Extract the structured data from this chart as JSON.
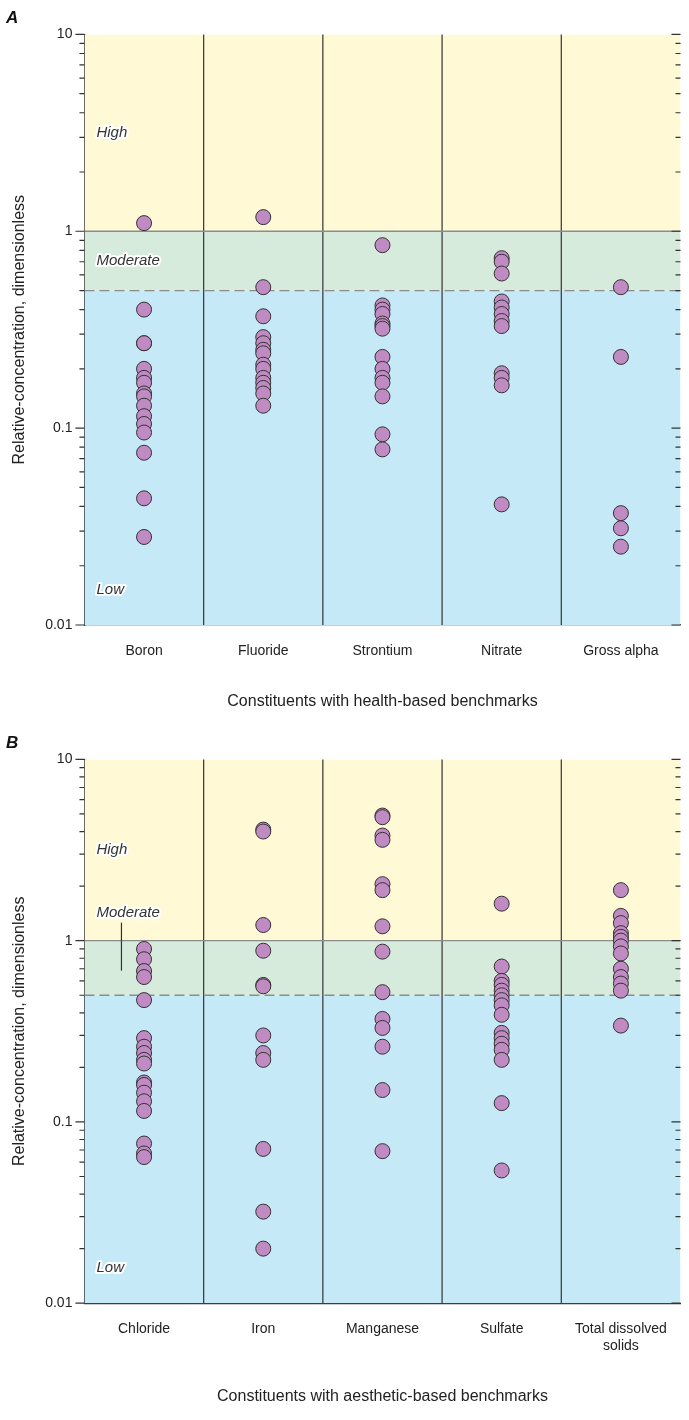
{
  "chart_data": [
    {
      "type": "scatter",
      "title": "A",
      "xlabel": "Constituents with health-based benchmarks",
      "ylabel": "Relative-concentration, dimensionless",
      "log": "y",
      "grid": "x",
      "legend": false,
      "marker": "circle",
      "categories": [
        "Boron",
        "Fluoride",
        "Strontium",
        "Nitrate",
        "Gross alpha"
      ],
      "ylim": [
        0.01,
        10
      ],
      "yticks": [
        0.01,
        {
          "value": 0.02,
          "label": null
        },
        {
          "value": 0.03,
          "label": null
        },
        {
          "value": 0.04,
          "label": null
        },
        {
          "value": 0.05,
          "label": null
        },
        {
          "value": 0.06,
          "label": null
        },
        {
          "value": 0.07,
          "label": null
        },
        {
          "value": 0.08,
          "label": null
        },
        {
          "value": 0.09,
          "label": null
        },
        0.1,
        {
          "value": 0.2,
          "label": null
        },
        {
          "value": 0.3,
          "label": null
        },
        {
          "value": 0.4,
          "label": null
        },
        {
          "value": 0.5,
          "label": null
        },
        {
          "value": 0.6,
          "label": null
        },
        {
          "value": 0.7,
          "label": null
        },
        {
          "value": 0.8,
          "label": null
        },
        {
          "value": 0.9,
          "label": null
        },
        1,
        {
          "value": 2,
          "label": null
        },
        {
          "value": 3,
          "label": null
        },
        {
          "value": 4,
          "label": null
        },
        {
          "value": 5,
          "label": null
        },
        {
          "value": 6,
          "label": null
        },
        {
          "value": 7,
          "label": null
        },
        {
          "value": 8,
          "label": null
        },
        {
          "value": 9,
          "label": null
        },
        10
      ],
      "bands": [
        {
          "axis": "y",
          "from": 1,
          "to": 10,
          "label": "High",
          "color": "#fff9d6"
        },
        {
          "axis": "y",
          "from": 0.5,
          "to": 1,
          "label": "Moderate",
          "color": "#d7ebdc"
        },
        {
          "axis": "y",
          "from": 0.01,
          "to": 0.5,
          "label": "Low",
          "color": "#c5e9f7"
        }
      ],
      "ref_lines": [
        {
          "axis": "y",
          "value": 1,
          "color": "#8c8c8c",
          "line_style": "solid"
        },
        {
          "axis": "y",
          "value": 0.5,
          "color": "#8c8c8c",
          "line_style": "dashed"
        }
      ],
      "series": [
        {
          "color": "#c08bc3",
          "x": [
            "Boron",
            "Boron",
            "Boron",
            "Boron",
            "Boron",
            "Boron",
            "Boron",
            "Boron",
            "Boron",
            "Boron",
            "Boron",
            "Boron",
            "Boron",
            "Boron",
            "Boron",
            "Boron",
            "Fluoride",
            "Fluoride",
            "Fluoride",
            "Fluoride",
            "Fluoride",
            "Fluoride",
            "Fluoride",
            "Fluoride",
            "Fluoride",
            "Fluoride",
            "Fluoride",
            "Fluoride",
            "Fluoride",
            "Fluoride",
            "Strontium",
            "Strontium",
            "Strontium",
            "Strontium",
            "Strontium",
            "Strontium",
            "Strontium",
            "Strontium",
            "Strontium",
            "Strontium",
            "Strontium",
            "Strontium",
            "Strontium",
            "Strontium",
            "Nitrate",
            "Nitrate",
            "Nitrate",
            "Nitrate",
            "Nitrate",
            "Nitrate",
            "Nitrate",
            "Nitrate",
            "Nitrate",
            "Nitrate",
            "Nitrate",
            "Nitrate",
            "Gross alpha",
            "Gross alpha",
            "Gross alpha",
            "Gross alpha",
            "Gross alpha"
          ],
          "values": [
            1.1,
            0.4,
            0.27,
            0.27,
            0.2,
            0.18,
            0.17,
            0.15,
            0.145,
            0.13,
            0.115,
            0.105,
            0.095,
            0.075,
            0.044,
            0.028,
            1.18,
            0.52,
            0.37,
            0.29,
            0.27,
            0.25,
            0.24,
            0.21,
            0.2,
            0.18,
            0.17,
            0.16,
            0.15,
            0.13,
            0.85,
            0.42,
            0.4,
            0.38,
            0.34,
            0.33,
            0.32,
            0.23,
            0.2,
            0.18,
            0.17,
            0.145,
            0.093,
            0.078,
            0.73,
            0.7,
            0.61,
            0.44,
            0.41,
            0.38,
            0.35,
            0.33,
            0.19,
            0.18,
            0.165,
            0.041,
            0.52,
            0.23,
            0.037,
            0.031,
            0.025
          ]
        }
      ]
    },
    {
      "type": "scatter",
      "title": "B",
      "xlabel": "Constituents with aesthetic-based benchmarks",
      "ylabel": "Relative-concentration, dimensionless",
      "log": "y",
      "grid": "x",
      "legend": false,
      "marker": "circle",
      "categories": [
        "Chloride",
        "Iron",
        "Manganese",
        "Sulfate",
        "Total dissolved solids"
      ],
      "ylim": [
        0.01,
        10
      ],
      "yticks": [
        0.01,
        {
          "value": 0.02,
          "label": null
        },
        {
          "value": 0.03,
          "label": null
        },
        {
          "value": 0.04,
          "label": null
        },
        {
          "value": 0.05,
          "label": null
        },
        {
          "value": 0.06,
          "label": null
        },
        {
          "value": 0.07,
          "label": null
        },
        {
          "value": 0.08,
          "label": null
        },
        {
          "value": 0.09,
          "label": null
        },
        0.1,
        {
          "value": 0.2,
          "label": null
        },
        {
          "value": 0.3,
          "label": null
        },
        {
          "value": 0.4,
          "label": null
        },
        {
          "value": 0.5,
          "label": null
        },
        {
          "value": 0.6,
          "label": null
        },
        {
          "value": 0.7,
          "label": null
        },
        {
          "value": 0.8,
          "label": null
        },
        {
          "value": 0.9,
          "label": null
        },
        1,
        {
          "value": 2,
          "label": null
        },
        {
          "value": 3,
          "label": null
        },
        {
          "value": 4,
          "label": null
        },
        {
          "value": 5,
          "label": null
        },
        {
          "value": 6,
          "label": null
        },
        {
          "value": 7,
          "label": null
        },
        {
          "value": 8,
          "label": null
        },
        {
          "value": 9,
          "label": null
        },
        10
      ],
      "bands": [
        {
          "axis": "y",
          "from": 1,
          "to": 10,
          "label": "High",
          "color": "#fff9d6"
        },
        {
          "axis": "y",
          "from": 0.5,
          "to": 1,
          "label": "Moderate",
          "color": "#d7ebdc"
        },
        {
          "axis": "y",
          "from": 0.01,
          "to": 0.5,
          "label": "Low",
          "color": "#c5e9f7"
        }
      ],
      "ref_lines": [
        {
          "axis": "y",
          "value": 1,
          "color": "#8c8c8c",
          "line_style": "solid"
        },
        {
          "axis": "y",
          "value": 0.5,
          "color": "#8c8c8c",
          "line_style": "dashed"
        }
      ],
      "series": [
        {
          "color": "#c08bc3",
          "x": [
            "Chloride",
            "Chloride",
            "Chloride",
            "Chloride",
            "Chloride",
            "Chloride",
            "Chloride",
            "Chloride",
            "Chloride",
            "Chloride",
            "Chloride",
            "Chloride",
            "Chloride",
            "Chloride",
            "Chloride",
            "Chloride",
            "Chloride",
            "Chloride",
            "Iron",
            "Iron",
            "Iron",
            "Iron",
            "Iron",
            "Iron",
            "Iron",
            "Iron",
            "Iron",
            "Iron",
            "Iron",
            "Iron",
            "Manganese",
            "Manganese",
            "Manganese",
            "Manganese",
            "Manganese",
            "Manganese",
            "Manganese",
            "Manganese",
            "Manganese",
            "Manganese",
            "Manganese",
            "Manganese",
            "Manganese",
            "Manganese",
            "Sulfate",
            "Sulfate",
            "Sulfate",
            "Sulfate",
            "Sulfate",
            "Sulfate",
            "Sulfate",
            "Sulfate",
            "Sulfate",
            "Sulfate",
            "Sulfate",
            "Sulfate",
            "Sulfate",
            "Sulfate",
            "Sulfate",
            "Sulfate",
            "Total dissolved solids",
            "Total dissolved solids",
            "Total dissolved solids",
            "Total dissolved solids",
            "Total dissolved solids",
            "Total dissolved solids",
            "Total dissolved solids",
            "Total dissolved solids",
            "Total dissolved solids",
            "Total dissolved solids",
            "Total dissolved solids",
            "Total dissolved solids",
            "Total dissolved solids"
          ],
          "values": [
            0.9,
            0.79,
            0.68,
            0.63,
            0.47,
            0.29,
            0.26,
            0.24,
            0.22,
            0.21,
            0.165,
            0.16,
            0.145,
            0.13,
            0.115,
            0.076,
            0.067,
            0.064,
            4.1,
            4.0,
            1.22,
            0.88,
            0.57,
            0.56,
            0.3,
            0.24,
            0.22,
            0.071,
            0.032,
            0.02,
            4.9,
            4.8,
            3.8,
            3.6,
            2.05,
            1.9,
            1.2,
            0.87,
            0.52,
            0.37,
            0.33,
            0.26,
            0.15,
            0.069,
            1.6,
            0.72,
            0.6,
            0.57,
            0.53,
            0.5,
            0.47,
            0.44,
            0.39,
            0.31,
            0.29,
            0.27,
            0.25,
            0.22,
            0.127,
            0.054,
            1.9,
            1.37,
            1.25,
            1.1,
            1.05,
            1.0,
            0.93,
            0.85,
            0.7,
            0.63,
            0.58,
            0.53,
            0.34
          ]
        }
      ]
    }
  ]
}
